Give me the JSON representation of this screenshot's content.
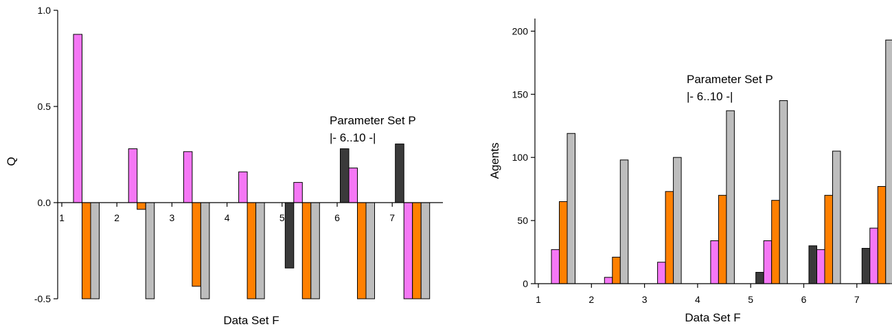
{
  "chart_data": [
    {
      "type": "bar",
      "xlabel": "Data Set F",
      "ylabel": "Q",
      "ylim": [
        -0.5,
        1.0
      ],
      "yticks": [
        "-0.5",
        "0.0",
        "0.5",
        "1.0"
      ],
      "x_tick_labels": [
        "1",
        "2",
        "3",
        "4",
        "5",
        "6",
        "7"
      ],
      "annotation": [
        "Parameter Set P",
        "|- 6..10 -|"
      ],
      "colors": [
        "#3a3a3a",
        "#f577f5",
        "#ff8000",
        "#bdbdbd"
      ],
      "groups": [
        [
          null,
          0.875,
          -0.5,
          -0.5
        ],
        [
          null,
          0.28,
          -0.035,
          -0.5
        ],
        [
          null,
          0.265,
          -0.435,
          -0.5
        ],
        [
          null,
          0.16,
          -0.5,
          -0.5
        ],
        [
          -0.34,
          0.105,
          -0.5,
          -0.5
        ],
        [
          0.28,
          0.18,
          -0.5,
          -0.5
        ],
        [
          0.305,
          -0.5,
          -0.5,
          -0.5
        ]
      ]
    },
    {
      "type": "bar",
      "xlabel": "Data Set F",
      "ylabel": "Agents",
      "ylim": [
        0,
        210
      ],
      "yticks": [
        "0",
        "50",
        "100",
        "150",
        "200"
      ],
      "x_tick_labels": [
        "1",
        "2",
        "3",
        "4",
        "5",
        "6",
        "7"
      ],
      "annotation": [
        "Parameter Set P",
        "|- 6..10 -|"
      ],
      "colors": [
        "#3a3a3a",
        "#f577f5",
        "#ff8000",
        "#bdbdbd"
      ],
      "groups": [
        [
          null,
          27,
          65,
          119
        ],
        [
          null,
          5,
          21,
          98
        ],
        [
          null,
          17,
          73,
          100
        ],
        [
          null,
          34,
          70,
          137
        ],
        [
          9,
          34,
          66,
          145
        ],
        [
          30,
          27,
          70,
          105
        ],
        [
          28,
          44,
          77,
          193
        ]
      ]
    }
  ]
}
